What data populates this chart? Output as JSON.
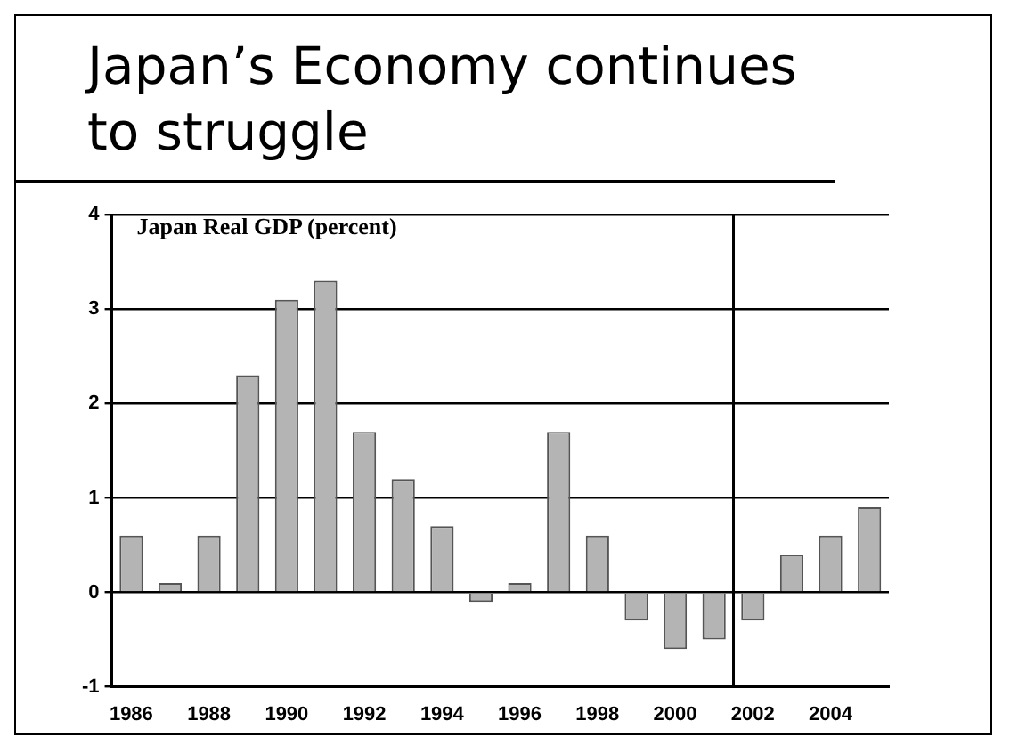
{
  "chart_data": {
    "type": "bar",
    "title": "Japan’s Economy continues to struggle",
    "subtitle": "Japan Real GDP (percent)",
    "x": [
      1986,
      1987,
      1988,
      1989,
      1990,
      1991,
      1992,
      1993,
      1994,
      1995,
      1996,
      1997,
      1998,
      1999,
      2000,
      2001,
      2002,
      2003,
      2004,
      2005
    ],
    "values": [
      0.6,
      0.1,
      0.6,
      2.3,
      3.1,
      3.3,
      1.7,
      1.2,
      0.7,
      -0.1,
      0.1,
      1.7,
      0.6,
      -0.3,
      -0.6,
      -0.5,
      -0.3,
      0.4,
      0.6,
      0.9
    ],
    "color": "#b4b4b4",
    "xlim": [
      1985.5,
      2005.5
    ],
    "xticks": [
      1986,
      1988,
      1990,
      1992,
      1994,
      1996,
      1998,
      2000,
      2002,
      2004
    ],
    "ylim": [
      -1,
      4
    ],
    "yticks": [
      -1,
      0,
      1,
      2,
      3,
      4
    ],
    "ref_lines": [
      {
        "axis": "x",
        "value": 2001.5,
        "color": "#000000"
      }
    ],
    "grid": "y",
    "legend": false
  }
}
